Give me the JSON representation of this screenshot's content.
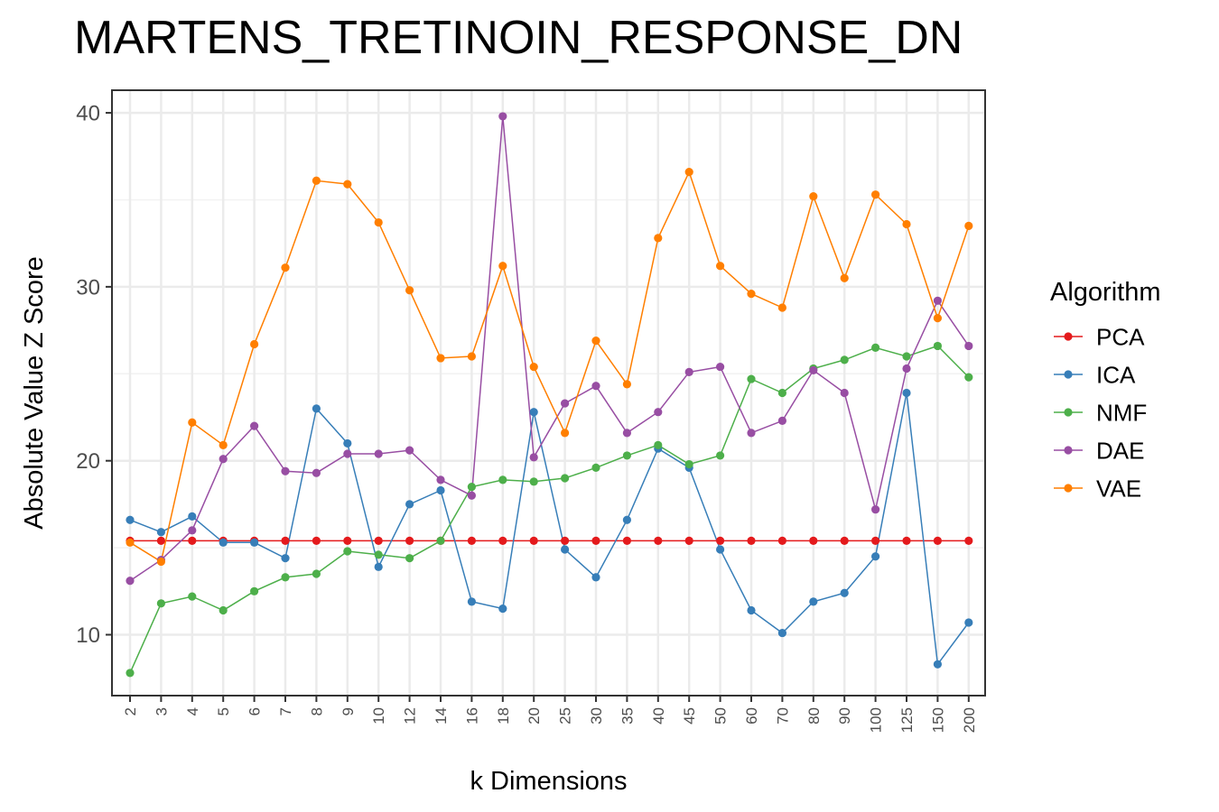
{
  "chart_data": {
    "type": "line",
    "title": "MARTENS_TRETINOIN_RESPONSE_DN",
    "xlabel": "k Dimensions",
    "ylabel": "Absolute Value Z Score",
    "categories": [
      "2",
      "3",
      "4",
      "5",
      "6",
      "7",
      "8",
      "9",
      "10",
      "12",
      "14",
      "16",
      "18",
      "20",
      "25",
      "30",
      "35",
      "40",
      "45",
      "50",
      "60",
      "70",
      "80",
      "90",
      "100",
      "125",
      "150",
      "200"
    ],
    "ylim": [
      6.5,
      41.3
    ],
    "yticks": [
      10,
      20,
      30,
      40
    ],
    "grid": true,
    "legend": {
      "title": "Algorithm",
      "position": "right"
    },
    "series": [
      {
        "name": "PCA",
        "color": "#e41a1c",
        "values": [
          15.4,
          15.4,
          15.4,
          15.4,
          15.4,
          15.4,
          15.4,
          15.4,
          15.4,
          15.4,
          15.4,
          15.4,
          15.4,
          15.4,
          15.4,
          15.4,
          15.4,
          15.4,
          15.4,
          15.4,
          15.4,
          15.4,
          15.4,
          15.4,
          15.4,
          15.4,
          15.4,
          15.4
        ]
      },
      {
        "name": "ICA",
        "color": "#377eb8",
        "values": [
          16.6,
          15.9,
          16.8,
          15.3,
          15.3,
          14.4,
          23.0,
          21.0,
          13.9,
          17.5,
          18.3,
          11.9,
          11.5,
          22.8,
          14.9,
          13.3,
          16.6,
          20.7,
          19.6,
          14.9,
          11.4,
          10.1,
          11.9,
          12.4,
          14.5,
          23.9,
          8.3,
          10.7
        ]
      },
      {
        "name": "NMF",
        "color": "#4daf4a",
        "values": [
          7.8,
          11.8,
          12.2,
          11.4,
          12.5,
          13.3,
          13.5,
          14.8,
          14.6,
          14.4,
          15.4,
          18.5,
          18.9,
          18.8,
          19.0,
          19.6,
          20.3,
          20.9,
          19.8,
          20.3,
          24.7,
          23.9,
          25.3,
          25.8,
          26.5,
          26.0,
          26.6,
          24.8
        ]
      },
      {
        "name": "DAE",
        "color": "#984ea3",
        "values": [
          13.1,
          14.3,
          16.0,
          20.1,
          22.0,
          19.4,
          19.3,
          20.4,
          20.4,
          20.6,
          18.9,
          18.0,
          39.8,
          20.2,
          23.3,
          24.3,
          21.6,
          22.8,
          25.1,
          25.4,
          21.6,
          22.3,
          25.2,
          23.9,
          17.2,
          25.3,
          29.2,
          26.6
        ]
      },
      {
        "name": "VAE",
        "color": "#ff7f00",
        "values": [
          15.3,
          14.2,
          22.2,
          20.9,
          26.7,
          31.1,
          36.1,
          35.9,
          33.7,
          29.8,
          25.9,
          26.0,
          31.2,
          25.4,
          21.6,
          26.9,
          24.4,
          32.8,
          36.6,
          31.2,
          29.6,
          28.8,
          35.2,
          30.5,
          35.3,
          33.6,
          28.2,
          33.5
        ]
      }
    ]
  }
}
